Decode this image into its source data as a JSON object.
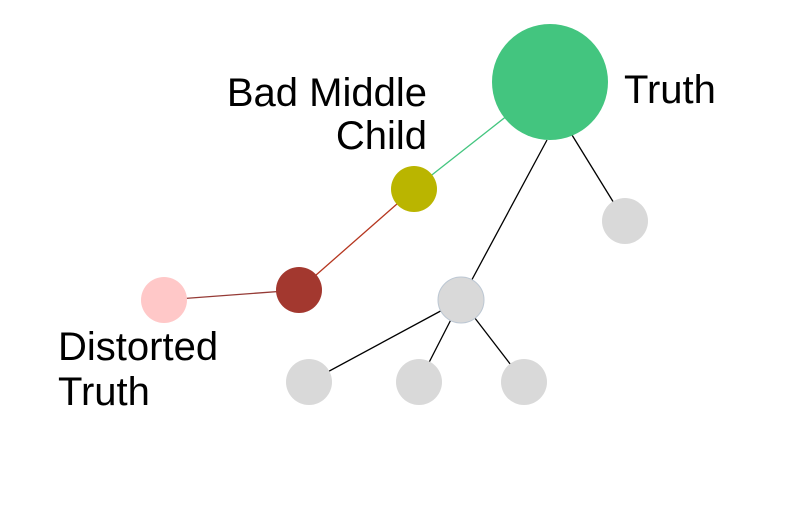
{
  "labels": {
    "truth": "Truth",
    "bad_middle_child_line1": "Bad Middle",
    "bad_middle_child_line2": "Child",
    "distorted_truth_line1": "Distorted",
    "distorted_truth_line2": "Truth"
  },
  "colors": {
    "truth_node": "#43c57f",
    "bad_middle_child_node": "#bab500",
    "distorted_parent_node": "#a3382f",
    "distorted_truth_node": "#ffc8c8",
    "gray_node": "#d9d9d9",
    "edge_truth_to_bad": "#43c57f",
    "edge_bad_to_distorted_parent": "#b5361f",
    "edge_distorted_parent_to_distorted": "#953a35",
    "edge_default": "#000000"
  }
}
